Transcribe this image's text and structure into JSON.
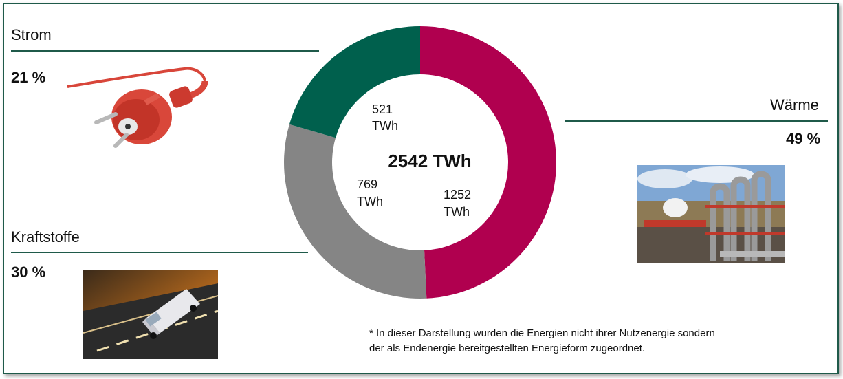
{
  "chart_data": {
    "type": "pie",
    "variant": "donut",
    "total_label": "2542 TWh",
    "slices": [
      {
        "name": "Wärme",
        "value": 1252,
        "label": "1252 TWh",
        "percent_label": "49 %",
        "color": "#b0004f"
      },
      {
        "name": "Kraftstoffe",
        "value": 769,
        "label": "769 TWh",
        "percent_label": "30 %",
        "color": "#858585"
      },
      {
        "name": "Strom",
        "value": 521,
        "label": "521 TWh",
        "percent_label": "21 %",
        "color": "#00604d"
      }
    ],
    "value_lines": {
      "waerme": [
        "1252",
        "TWh"
      ],
      "kraftstoffe": [
        "769",
        "TWh"
      ],
      "strom": [
        "521",
        "TWh"
      ]
    }
  },
  "categories": {
    "strom": {
      "title": "Strom",
      "percent": "21 %",
      "image": "power-plug-photo"
    },
    "kraftstoffe": {
      "title": "Kraftstoffe",
      "percent": "30 %",
      "image": "truck-on-road-photo"
    },
    "waerme": {
      "title": "Wärme",
      "percent": "49 %",
      "image": "geothermal-plant-photo"
    }
  },
  "footnote": {
    "line1": "* In dieser Darstellung wurden die Energien nicht ihrer Nutzenergie sondern",
    "line2": "der als Endenergie bereitgestellten Energieform zugeordnet."
  },
  "colors": {
    "accent_green": "#1f5a4a",
    "waerme": "#b0004f",
    "kraftstoffe": "#858585",
    "strom": "#00604d"
  }
}
